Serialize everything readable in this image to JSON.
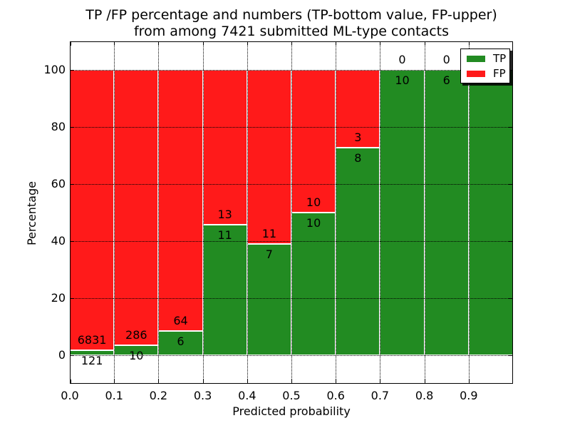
{
  "chart_data": {
    "type": "bar",
    "stacked": true,
    "normalized": "percent",
    "title_line1": "TP /FP percentage and numbers (TP-bottom value, FP-upper)",
    "title_line2": "from among 7421 submitted ML-type contacts",
    "xlabel": "Predicted probability",
    "ylabel": "Percentage",
    "xlim": [
      0.0,
      1.0
    ],
    "ylim": [
      -10,
      110
    ],
    "bin_width": 0.1,
    "bin_starts": [
      0.0,
      0.1,
      0.2,
      0.3,
      0.4,
      0.5,
      0.6,
      0.7,
      0.8,
      0.9
    ],
    "x_tick_values": [
      0.0,
      0.1,
      0.2,
      0.3,
      0.4,
      0.5,
      0.6,
      0.7,
      0.8,
      0.9
    ],
    "x_tick_labels": [
      "0.0",
      "0.1",
      "0.2",
      "0.3",
      "0.4",
      "0.5",
      "0.6",
      "0.7",
      "0.8",
      "0.9"
    ],
    "y_tick_values": [
      0,
      20,
      40,
      60,
      80,
      100
    ],
    "y_tick_labels": [
      "0",
      "20",
      "40",
      "60",
      "80",
      "100"
    ],
    "grid": true,
    "grid_style": "dotted",
    "series": [
      {
        "name": "TP",
        "color": "#228b22",
        "values": [
          121,
          10,
          6,
          11,
          7,
          10,
          8,
          10,
          6,
          14
        ]
      },
      {
        "name": "FP",
        "color": "#ff1a1a",
        "values": [
          6831,
          286,
          64,
          13,
          11,
          10,
          3,
          0,
          0,
          0
        ]
      }
    ],
    "legend": {
      "position": "upper right",
      "entries": [
        {
          "label": "TP",
          "color": "#228b22"
        },
        {
          "label": "FP",
          "color": "#ff1a1a"
        }
      ]
    }
  },
  "colors": {
    "tp": "#228b22",
    "fp": "#ff1a1a",
    "background": "#ffffff",
    "text": "#000000"
  }
}
